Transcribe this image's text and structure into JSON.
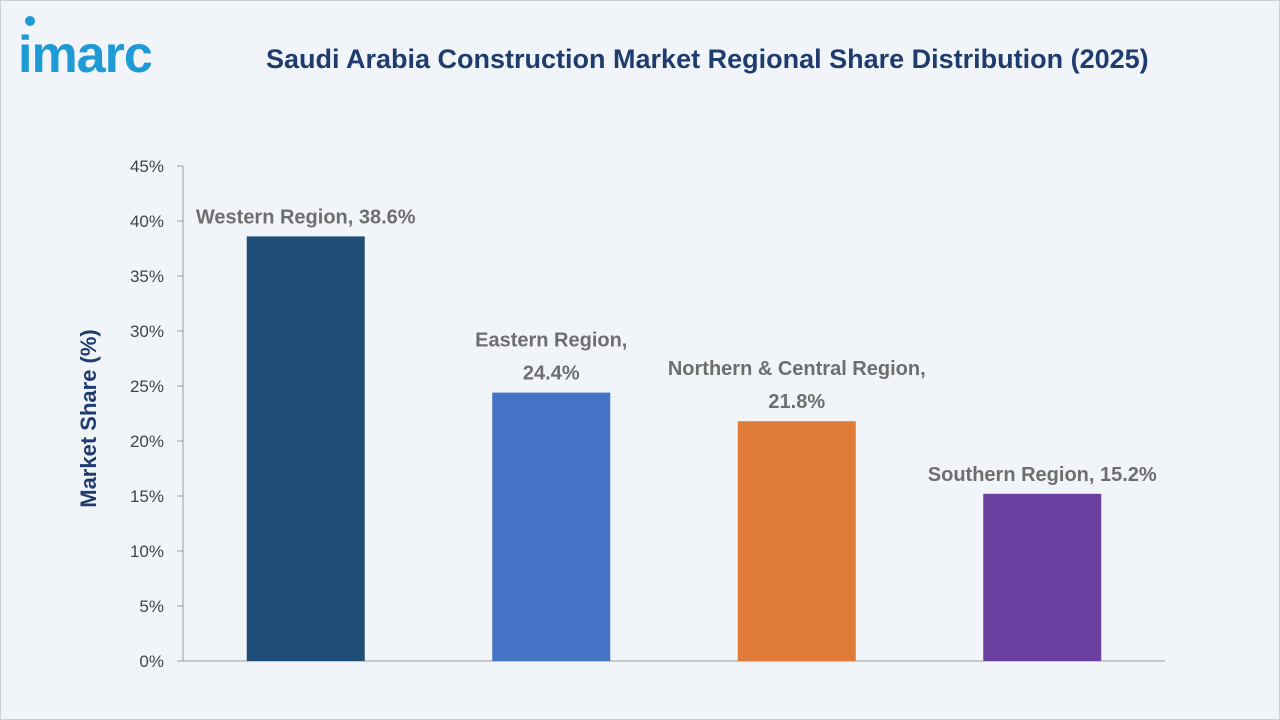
{
  "brand": {
    "logo_text": "imarc",
    "logo_color": "#1e9ad6"
  },
  "title": "Saudi Arabia Construction Market Regional Share Distribution (2025)",
  "chart_data": {
    "type": "bar",
    "title": "Saudi Arabia Construction Market Regional Share Distribution (2025)",
    "xlabel": "",
    "ylabel": "Market Share (%)",
    "ylim": [
      0,
      45
    ],
    "yticks": [
      "0%",
      "5%",
      "10%",
      "15%",
      "20%",
      "25%",
      "30%",
      "35%",
      "40%",
      "45%"
    ],
    "categories": [
      "Western Region",
      "Eastern Region",
      "Northern & Central Region",
      "Southern Region"
    ],
    "values": [
      38.6,
      24.4,
      21.8,
      15.2
    ],
    "data_labels": [
      [
        "Western Region, 38.6%"
      ],
      [
        "Eastern Region,",
        "24.4%"
      ],
      [
        "Northern & Central Region,",
        "21.8%"
      ],
      [
        "Southern Region, 15.2%"
      ]
    ],
    "colors": [
      "#1f4e79",
      "#4472c4",
      "#e07b39",
      "#6b3fa0"
    ],
    "grid": false,
    "legend": "none"
  }
}
